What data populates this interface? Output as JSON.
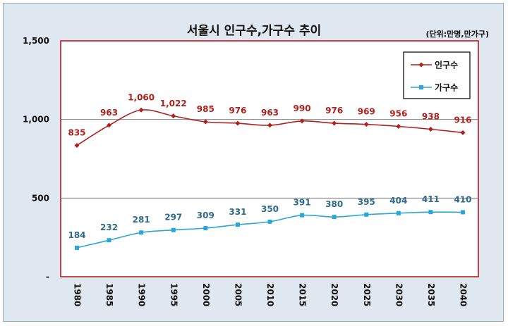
{
  "chart_data": {
    "type": "line",
    "title": "서울시 인구수,가구수 추이",
    "unit_note": "(단위:만명,만가구)",
    "categories": [
      "1980",
      "1985",
      "1990",
      "1995",
      "2000",
      "2005",
      "2010",
      "2015",
      "2020",
      "2025",
      "2030",
      "2035",
      "2040"
    ],
    "series": [
      {
        "name": "인구수",
        "color": "#b0201c",
        "label_color": "#b0201c",
        "marker": "diamond",
        "values": [
          835,
          963,
          1060,
          1022,
          985,
          976,
          963,
          990,
          976,
          969,
          956,
          938,
          916
        ],
        "labels": [
          "835",
          "963",
          "1,060",
          "1,022",
          "985",
          "976",
          "963",
          "990",
          "976",
          "969",
          "956",
          "938",
          "916"
        ]
      },
      {
        "name": "가구수",
        "color": "#2ba6d8",
        "label_color": "#2f6a8c",
        "marker": "square",
        "values": [
          184,
          232,
          281,
          297,
          309,
          331,
          350,
          391,
          380,
          395,
          404,
          411,
          410
        ],
        "labels": [
          "184",
          "232",
          "281",
          "297",
          "309",
          "331",
          "350",
          "391",
          "380",
          "395",
          "404",
          "411",
          "410"
        ]
      }
    ],
    "yticks": [
      {
        "value": 0,
        "label": "-"
      },
      {
        "value": 500,
        "label": "500"
      },
      {
        "value": 1000,
        "label": "1,000"
      },
      {
        "value": 1500,
        "label": "1,500"
      }
    ],
    "ylim": [
      0,
      1500
    ],
    "grid": true,
    "legend": "top-right",
    "xlabel": "",
    "ylabel": ""
  }
}
